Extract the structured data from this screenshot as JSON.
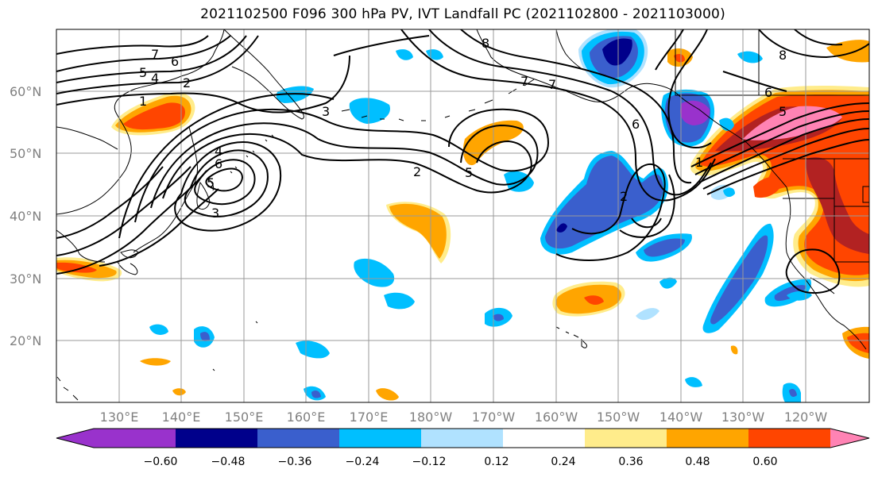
{
  "title": "2021102500 F096 300 hPa PV, IVT Landfall PC (2021102800 - 2021103000)",
  "lat_labels": [
    "60°N",
    "50°N",
    "40°N",
    "30°N",
    "20°N"
  ],
  "lon_labels": [
    "130°E",
    "140°E",
    "150°E",
    "160°E",
    "170°E",
    "180°W",
    "170°W",
    "160°W",
    "150°W",
    "140°W",
    "130°W",
    "120°W"
  ],
  "colorbar": {
    "ticks": [
      "−0.60",
      "−0.48",
      "−0.36",
      "−0.24",
      "−0.12",
      "0.12",
      "0.24",
      "0.36",
      "0.48",
      "0.60"
    ],
    "colors": [
      "#9932cc",
      "#00008b",
      "#3a5fcd",
      "#00bfff",
      "#b0e2ff",
      "#ffffff",
      "#ffec8b",
      "#ffa500",
      "#ff4500",
      "#b22222",
      "#ff83b4"
    ]
  },
  "pv_contour_labels": [
    "1",
    "2",
    "4",
    "5",
    "6",
    "7",
    "8",
    "2",
    "3",
    "5",
    "6",
    "7",
    "8",
    "7",
    "6",
    "5",
    "4",
    "3",
    "2",
    "1",
    "6",
    "5"
  ],
  "colors": {
    "negative_strong": "#00008b",
    "negative_mid": "#3a5fcd",
    "negative_light": "#00bfff",
    "negative_faint": "#b0e2ff",
    "positive_faint": "#ffec8b",
    "positive_light": "#ffa500",
    "positive_mid": "#ff4500",
    "positive_strong": "#b22222",
    "positive_max": "#ff83b4",
    "purple_min": "#9932cc"
  }
}
